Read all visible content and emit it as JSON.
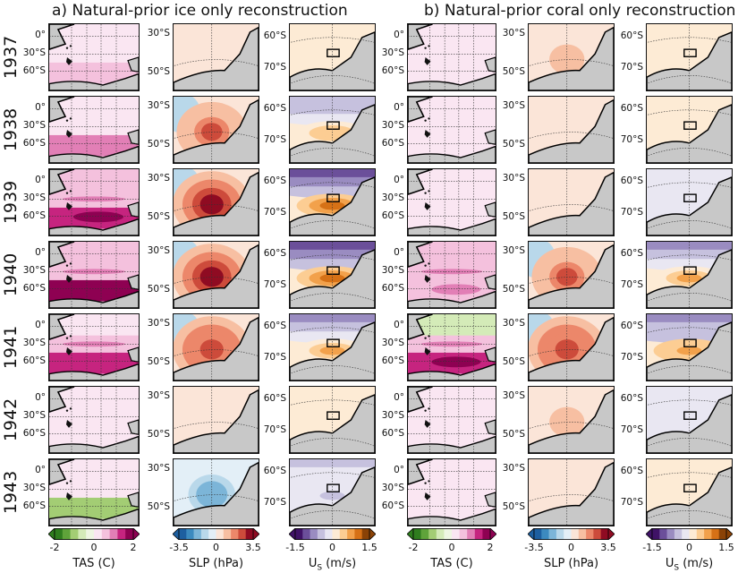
{
  "titles": {
    "a": "a) Natural-prior ice only reconstruction",
    "b": "b) Natural-prior coral only reconstruction"
  },
  "years": [
    "1937",
    "1938",
    "1939",
    "1940",
    "1941",
    "1942",
    "1943"
  ],
  "lat_ticks": {
    "tas": [
      "0°",
      "30°S",
      "60°S"
    ],
    "slp": [
      "30°S",
      "50°S"
    ],
    "us": [
      "60°S",
      "70°S"
    ]
  },
  "colorbars": {
    "tas": {
      "label": "TAS (C)",
      "ticks": [
        "-2",
        "0",
        "2"
      ],
      "colors": [
        "#2f7d1e",
        "#5fa33a",
        "#a3cd74",
        "#d4ebb8",
        "#eef6e2",
        "#fae6f2",
        "#f4c1dd",
        "#e27fb6",
        "#c6247f",
        "#8e0152"
      ]
    },
    "slp": {
      "label": "SLP (hPa)",
      "ticks": [
        "-3.5",
        "0",
        "3.5"
      ],
      "colors": [
        "#1d5fa0",
        "#3c8abf",
        "#7cb5d8",
        "#b9d8ea",
        "#e3eff7",
        "#fbe5d8",
        "#f7bfa2",
        "#ec876a",
        "#cd4b3b",
        "#8f0b22"
      ]
    },
    "us": {
      "label": "U_S (m/s)",
      "label_main": "U",
      "label_sub": "S",
      "label_rest": " (m/s)",
      "ticks": [
        "-1.5",
        "0",
        "1.5"
      ],
      "colors": [
        "#3f1266",
        "#6b4f9a",
        "#9a8cc1",
        "#c6c1de",
        "#e9e7f2",
        "#fdebd5",
        "#fccd93",
        "#f2a14b",
        "#d67116",
        "#8a4206"
      ]
    }
  },
  "panel_fields": {
    "a": [
      {
        "tas": [
          0.1,
          0.15,
          0.3,
          0.0
        ],
        "slp": 0.2,
        "us": 0.1
      },
      {
        "tas": [
          0.1,
          0.2,
          0.5,
          0.1
        ],
        "slp": 0.7,
        "us": 0.4
      },
      {
        "tas": [
          0.3,
          0.3,
          0.8,
          0.1
        ],
        "slp": 1.0,
        "us": 0.7
      },
      {
        "tas": [
          0.4,
          0.4,
          1.0,
          0.1
        ],
        "slp": 1.0,
        "us": 0.8
      },
      {
        "tas": [
          0.2,
          0.3,
          0.7,
          0.0
        ],
        "slp": 0.8,
        "us": 0.5
      },
      {
        "tas": [
          0.05,
          0.05,
          0.1,
          0.0
        ],
        "slp": 0.2,
        "us": 0.1
      },
      {
        "tas": [
          0.2,
          0.1,
          -0.5,
          0.0
        ],
        "slp": -0.6,
        "us": -0.3
      }
    ],
    "b": [
      {
        "tas": [
          0.05,
          0.1,
          0.1,
          0.0
        ],
        "slp": 0.4,
        "us": 0.1
      },
      {
        "tas": [
          0.05,
          0.1,
          0.1,
          0.0
        ],
        "slp": 0.15,
        "us": 0.1
      },
      {
        "tas": [
          0.1,
          0.15,
          0.2,
          0.0
        ],
        "slp": 0.2,
        "us": -0.1
      },
      {
        "tas": [
          0.3,
          0.3,
          0.4,
          0.0
        ],
        "slp": 0.7,
        "us": 0.5
      },
      {
        "tas": [
          -0.4,
          0.3,
          0.8,
          0.0
        ],
        "slp": 0.8,
        "us": 0.6
      },
      {
        "tas": [
          0.05,
          0.05,
          0.1,
          0.0
        ],
        "slp": 0.4,
        "us": -0.1
      },
      {
        "tas": [
          0.05,
          0.05,
          0.1,
          0.0
        ],
        "slp": 0.2,
        "us": 0.1
      }
    ]
  }
}
